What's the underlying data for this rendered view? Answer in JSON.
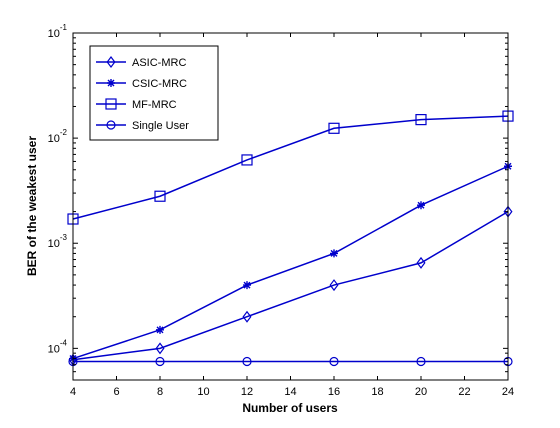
{
  "chart_data": {
    "type": "line",
    "title": "",
    "xlabel": "Number of users",
    "ylabel": "BER of the weakest user",
    "x": [
      4,
      8,
      12,
      16,
      20,
      24
    ],
    "xlim": [
      4,
      24
    ],
    "xticks": [
      4,
      6,
      8,
      10,
      12,
      14,
      16,
      18,
      20,
      22,
      24
    ],
    "ylim": [
      5e-05,
      0.1
    ],
    "yscale": "log",
    "yticks": [
      {
        "value": 0.0001,
        "base": "10",
        "exp": "-4"
      },
      {
        "value": 0.001,
        "base": "10",
        "exp": "-3"
      },
      {
        "value": 0.01,
        "base": "10",
        "exp": "-2"
      },
      {
        "value": 0.1,
        "base": "10",
        "exp": "-1"
      }
    ],
    "grid": false,
    "legend_position": "top-left",
    "line_color": "#0000cc",
    "series": [
      {
        "name": "ASIC-MRC",
        "marker": "diamond",
        "values": [
          7.8e-05,
          0.0001,
          0.0002,
          0.0004,
          0.00065,
          0.002
        ]
      },
      {
        "name": "CSIC-MRC",
        "marker": "star",
        "values": [
          8e-05,
          0.00015,
          0.0004,
          0.0008,
          0.0023,
          0.0054
        ]
      },
      {
        "name": "MF-MRC",
        "marker": "square",
        "values": [
          0.0017,
          0.0028,
          0.0062,
          0.0124,
          0.015,
          0.0162
        ]
      },
      {
        "name": "Single User",
        "marker": "circle",
        "values": [
          7.5e-05,
          7.5e-05,
          7.5e-05,
          7.5e-05,
          7.5e-05,
          7.5e-05
        ]
      }
    ]
  }
}
